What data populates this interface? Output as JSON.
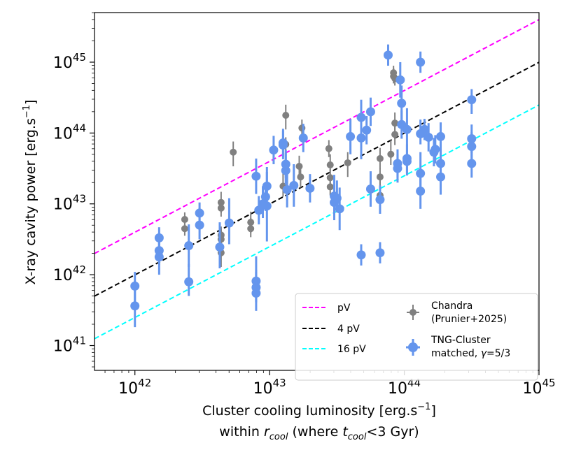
{
  "chart_data": {
    "type": "scatter",
    "xscale": "log",
    "yscale": "log",
    "xlim_exp": [
      41.7,
      45
    ],
    "ylim_exp": [
      40.65,
      45.7
    ],
    "xticks": [
      {
        "base": "10",
        "exp": "42"
      },
      {
        "base": "10",
        "exp": "43"
      },
      {
        "base": "10",
        "exp": "44"
      },
      {
        "base": "10",
        "exp": "45"
      }
    ],
    "yticks": [
      {
        "base": "10",
        "exp": "41"
      },
      {
        "base": "10",
        "exp": "42"
      },
      {
        "base": "10",
        "exp": "43"
      },
      {
        "base": "10",
        "exp": "44"
      },
      {
        "base": "10",
        "exp": "45"
      }
    ],
    "xlabel": {
      "line1": "Cluster cooling luminosity [erg.s",
      "line1_sup": "−1",
      "line1_end": "]",
      "line2_a": "within ",
      "line2_r": "r",
      "line2_rsub": "cool",
      "line2_b": " (where ",
      "line2_t": "t",
      "line2_tsub": "cool",
      "line2_c": "<3 Gyr)"
    },
    "ylabel": {
      "text": "X-ray cavity power [erg.s",
      "sup": "−1",
      "end": "]"
    },
    "lines": [
      {
        "label": "pV",
        "factor": 1,
        "color": "#ff00ff"
      },
      {
        "label": "4 pV",
        "factor": 4,
        "color": "#000000"
      },
      {
        "label": "16 pV",
        "factor": 16,
        "color": "#00ffff"
      }
    ],
    "line_anchor": {
      "x_exp": [
        41.7,
        45
      ],
      "y_exp_pV": [
        42.3,
        45.6
      ]
    },
    "series": [
      {
        "name": "Chandra (Prunier+2025)",
        "legend_line1": "Chandra",
        "legend_line2": "(Prunier+2025)",
        "color": "#808080",
        "points": [
          [
            42.37,
            42.78,
            0.12,
            0.1
          ],
          [
            42.37,
            42.65,
            0.1,
            0.1
          ],
          [
            42.64,
            43.02,
            0.15,
            0.15
          ],
          [
            42.64,
            42.94,
            0.12,
            0.12
          ],
          [
            42.64,
            42.56,
            0.15,
            0.12
          ],
          [
            42.64,
            42.5,
            0.12,
            0.15
          ],
          [
            42.64,
            42.31,
            0.2,
            0.25
          ],
          [
            42.73,
            43.73,
            0.2,
            0.15
          ],
          [
            42.86,
            42.74,
            0.15,
            0.15
          ],
          [
            42.86,
            42.65,
            0.12,
            0.15
          ],
          [
            43.1,
            43.25,
            0.15,
            0.2
          ],
          [
            43.12,
            44.25,
            0.2,
            0.15
          ],
          [
            43.12,
            43.84,
            0.15,
            0.1
          ],
          [
            43.22,
            43.53,
            0.15,
            0.15
          ],
          [
            43.23,
            43.38,
            0.15,
            0.15
          ],
          [
            43.24,
            44.07,
            0.1,
            0.12
          ],
          [
            43.44,
            43.78,
            0.12,
            0.12
          ],
          [
            43.45,
            43.55,
            0.15,
            0.15
          ],
          [
            43.45,
            43.37,
            0.12,
            0.12
          ],
          [
            43.45,
            43.24,
            0.12,
            0.15
          ],
          [
            43.58,
            43.58,
            0.2,
            0.15
          ],
          [
            43.82,
            43.64,
            0.15,
            0.15
          ],
          [
            43.82,
            43.38,
            0.12,
            0.12
          ],
          [
            43.82,
            43.12,
            0.2,
            0.25
          ],
          [
            43.9,
            43.7,
            0.15,
            0.2
          ],
          [
            43.93,
            43.98,
            0.15,
            0.15
          ],
          [
            43.93,
            44.14,
            0.12,
            0.15
          ],
          [
            43.93,
            44.77,
            0.1,
            0.1
          ],
          [
            43.92,
            44.85,
            0.1,
            0.1
          ],
          [
            43.92,
            44.8,
            0.1,
            0.12
          ]
        ]
      },
      {
        "name": "TNG-Cluster matched, γ=5/3",
        "legend_line1": "TNG-Cluster",
        "legend_line2": "matched, ",
        "legend_gamma": "γ",
        "legend_line2_end": "=5/3",
        "color": "#6495ed",
        "points": [
          [
            42.0,
            41.84,
            0.25,
            0.2
          ],
          [
            42.0,
            41.56,
            0.3,
            0.35
          ],
          [
            42.18,
            42.52,
            0.15,
            0.15
          ],
          [
            42.18,
            42.34,
            0.2,
            0.25
          ],
          [
            42.18,
            42.25,
            0.25,
            0.25
          ],
          [
            42.4,
            42.41,
            0.3,
            0.3
          ],
          [
            42.4,
            41.9,
            0.2,
            0.25
          ],
          [
            42.48,
            42.87,
            0.2,
            0.15
          ],
          [
            42.48,
            42.7,
            0.2,
            0.2
          ],
          [
            42.63,
            42.39,
            0.3,
            0.35
          ],
          [
            42.7,
            42.73,
            0.3,
            0.35
          ],
          [
            42.9,
            43.39,
            0.25,
            0.25
          ],
          [
            42.92,
            42.91,
            0.2,
            0.2
          ],
          [
            42.95,
            43.0,
            0.2,
            0.25
          ],
          [
            42.97,
            43.1,
            0.2,
            0.2
          ],
          [
            42.98,
            43.25,
            0.2,
            0.2
          ],
          [
            42.98,
            42.97,
            0.5,
            0.55
          ],
          [
            42.9,
            41.91,
            0.3,
            0.35
          ],
          [
            42.9,
            41.82,
            0.2,
            0.25
          ],
          [
            42.9,
            41.74,
            0.25,
            0.3
          ],
          [
            43.03,
            43.76,
            0.2,
            0.2
          ],
          [
            43.1,
            43.86,
            0.2,
            0.2
          ],
          [
            43.1,
            43.83,
            0.2,
            0.2
          ],
          [
            43.12,
            43.56,
            0.2,
            0.2
          ],
          [
            43.12,
            43.47,
            0.2,
            0.25
          ],
          [
            43.13,
            43.2,
            0.25,
            0.3
          ],
          [
            43.18,
            43.26,
            0.3,
            0.3
          ],
          [
            43.25,
            43.93,
            0.2,
            0.2
          ],
          [
            43.3,
            43.22,
            0.2,
            0.2
          ],
          [
            43.48,
            43.11,
            0.25,
            0.3
          ],
          [
            43.48,
            43.02,
            0.25,
            0.2
          ],
          [
            43.5,
            43.08,
            0.2,
            0.25
          ],
          [
            43.52,
            42.93,
            0.3,
            0.3
          ],
          [
            43.6,
            43.95,
            0.25,
            0.25
          ],
          [
            43.68,
            44.22,
            0.25,
            0.25
          ],
          [
            43.68,
            43.93,
            0.3,
            0.3
          ],
          [
            43.68,
            42.28,
            0.15,
            0.15
          ],
          [
            43.72,
            44.04,
            0.2,
            0.2
          ],
          [
            43.75,
            44.3,
            0.2,
            0.2
          ],
          [
            43.75,
            43.21,
            0.25,
            0.25
          ],
          [
            43.82,
            43.06,
            0.2,
            0.2
          ],
          [
            43.82,
            42.31,
            0.15,
            0.15
          ],
          [
            43.88,
            45.1,
            0.15,
            0.15
          ],
          [
            43.95,
            43.5,
            0.2,
            0.2
          ],
          [
            43.95,
            43.57,
            0.2,
            0.2
          ],
          [
            43.97,
            44.75,
            0.25,
            0.25
          ],
          [
            43.98,
            44.42,
            0.25,
            0.25
          ],
          [
            43.98,
            44.12,
            0.2,
            0.2
          ],
          [
            44.02,
            44.05,
            0.25,
            0.3
          ],
          [
            44.02,
            43.64,
            0.2,
            0.2
          ],
          [
            44.02,
            43.6,
            0.2,
            0.2
          ],
          [
            44.12,
            43.43,
            0.25,
            0.3
          ],
          [
            44.12,
            43.18,
            0.25,
            0.2
          ],
          [
            44.12,
            45.0,
            0.15,
            0.15
          ],
          [
            44.12,
            43.99,
            0.15,
            0.2
          ],
          [
            44.15,
            44.05,
            0.15,
            0.15
          ],
          [
            44.18,
            43.94,
            0.2,
            0.2
          ],
          [
            44.22,
            43.73,
            0.2,
            0.2
          ],
          [
            44.23,
            43.77,
            0.2,
            0.2
          ],
          [
            44.27,
            43.95,
            0.2,
            0.2
          ],
          [
            44.27,
            43.57,
            0.25,
            0.2
          ],
          [
            44.27,
            43.38,
            0.25,
            0.3
          ],
          [
            44.5,
            44.47,
            0.2,
            0.15
          ],
          [
            44.5,
            43.92,
            0.2,
            0.2
          ],
          [
            44.5,
            43.81,
            0.2,
            0.2
          ],
          [
            44.5,
            43.57,
            0.2,
            0.2
          ]
        ]
      }
    ]
  }
}
